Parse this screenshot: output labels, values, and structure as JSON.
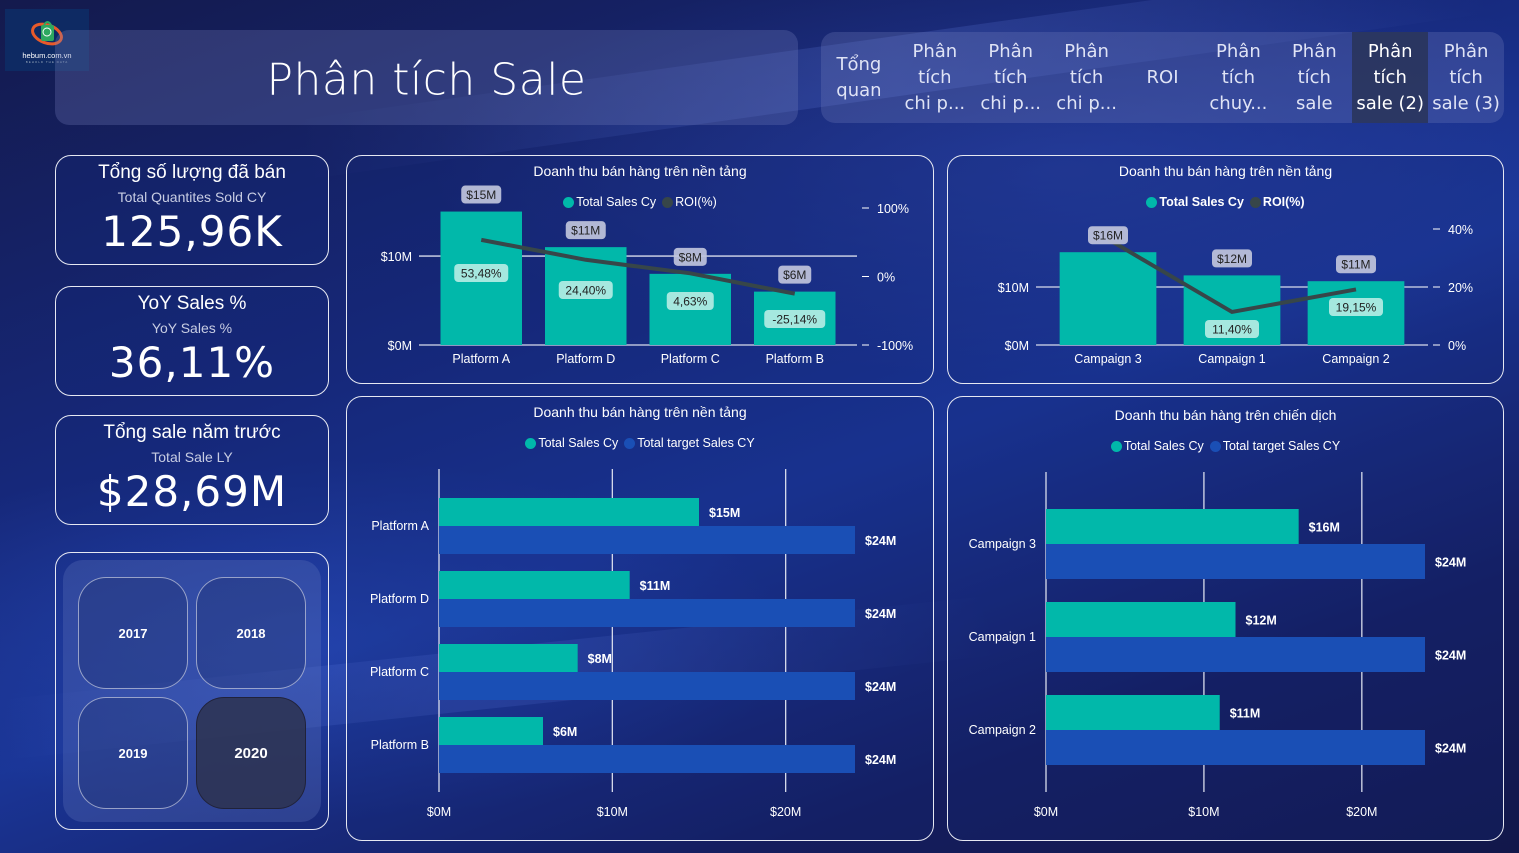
{
  "app": {
    "logo_text": "hebum.com.vn",
    "logo_sub": "BEHOLD THE DATA",
    "page_title": "Phân tích Sale"
  },
  "nav": {
    "tabs": [
      {
        "label": "Tổng\nquan",
        "active": false
      },
      {
        "label": "Phân\ntích\nchi p...",
        "active": false
      },
      {
        "label": "Phân\ntích\nchi p...",
        "active": false
      },
      {
        "label": "Phân\ntích\nchi p...",
        "active": false
      },
      {
        "label": "ROI",
        "active": false
      },
      {
        "label": "Phân\ntích\nchuy...",
        "active": false
      },
      {
        "label": "Phân\ntích\nsale",
        "active": false
      },
      {
        "label": "Phân\ntích\nsale (2)",
        "active": true
      },
      {
        "label": "Phân\ntích\nsale (3)",
        "active": false
      }
    ]
  },
  "kpis": [
    {
      "title": "Tổng số lượng đã bán",
      "subtitle": "Total Quantites Sold CY",
      "value": "125,96K"
    },
    {
      "title": "YoY Sales %",
      "subtitle": "YoY Sales %",
      "value": "36,11%"
    },
    {
      "title": "Tổng sale năm trước",
      "subtitle": "Total Sale LY",
      "value": "$28,69M"
    }
  ],
  "year_slicer": {
    "options": [
      "2017",
      "2018",
      "2019",
      "2020"
    ],
    "selected": "2020"
  },
  "colors": {
    "sales": "#01b8aa",
    "target": "#1a4fb5",
    "roi": "#374649",
    "label_bg": "#c0c4dc",
    "roi_label_bg": "#b3ece4"
  },
  "chart_data": [
    {
      "type": "bar",
      "title": "Doanh thu bán hàng trên nền tảng",
      "legend": [
        "Total Sales Cy",
        "ROI(%)"
      ],
      "categories": [
        "Platform A",
        "Platform D",
        "Platform C",
        "Platform B"
      ],
      "series": [
        {
          "name": "Total Sales Cy",
          "values": [
            15,
            11,
            8,
            6
          ],
          "labels": [
            "$15M",
            "$11M",
            "$8M",
            "$6M"
          ],
          "axis": "left"
        },
        {
          "name": "ROI(%)",
          "type": "line",
          "values": [
            53.48,
            24.4,
            4.63,
            -25.14
          ],
          "labels": [
            "53,48%",
            "24,40%",
            "4,63%",
            "-25,14%"
          ],
          "axis": "right"
        }
      ],
      "y_left": {
        "ticks": [
          "$0M",
          "$10M"
        ],
        "range": [
          0,
          15
        ]
      },
      "y_right": {
        "ticks": [
          "-100%",
          "0%",
          "100%"
        ],
        "range": [
          -100,
          100
        ]
      },
      "grid": true,
      "legend_position": "top-center"
    },
    {
      "type": "bar",
      "title": "Doanh thu bán hàng trên nền tảng",
      "legend": [
        "Total Sales Cy",
        "ROI(%)"
      ],
      "categories": [
        "Campaign 3",
        "Campaign 1",
        "Campaign 2"
      ],
      "series": [
        {
          "name": "Total Sales Cy",
          "values": [
            16,
            12,
            11
          ],
          "labels": [
            "$16M",
            "$12M",
            "$11M"
          ],
          "axis": "left"
        },
        {
          "name": "ROI(%)",
          "type": "line",
          "values": [
            36.5,
            11.4,
            19.15
          ],
          "labels": [
            "",
            "11,40%",
            "19,15%"
          ],
          "axis": "right"
        }
      ],
      "y_left": {
        "ticks": [
          "$0M",
          "$10M"
        ],
        "range": [
          0,
          20
        ]
      },
      "y_right": {
        "ticks": [
          "0%",
          "20%",
          "40%"
        ],
        "range": [
          0,
          40
        ]
      },
      "grid": true,
      "legend_position": "top-center"
    },
    {
      "type": "bar",
      "orientation": "horizontal",
      "title": "Doanh thu bán hàng trên nền tảng",
      "legend": [
        "Total Sales Cy",
        "Total target Sales CY"
      ],
      "categories": [
        "Platform A",
        "Platform D",
        "Platform C",
        "Platform B"
      ],
      "series": [
        {
          "name": "Total Sales Cy",
          "values": [
            15,
            11,
            8,
            6
          ],
          "labels": [
            "$15M",
            "$11M",
            "$8M",
            "$6M"
          ]
        },
        {
          "name": "Total target Sales CY",
          "values": [
            24,
            24,
            24,
            24
          ],
          "labels": [
            "$24M",
            "$24M",
            "$24M",
            "$24M"
          ]
        }
      ],
      "x_axis": {
        "ticks": [
          "$0M",
          "$10M",
          "$20M"
        ],
        "range": [
          0,
          24
        ]
      },
      "grid": true,
      "legend_position": "top-center"
    },
    {
      "type": "bar",
      "orientation": "horizontal",
      "title": "Doanh thu bán hàng trên chiến dịch",
      "legend": [
        "Total Sales Cy",
        "Total target Sales CY"
      ],
      "categories": [
        "Campaign 3",
        "Campaign 1",
        "Campaign 2"
      ],
      "series": [
        {
          "name": "Total Sales Cy",
          "values": [
            16,
            12,
            11
          ],
          "labels": [
            "$16M",
            "$12M",
            "$11M"
          ]
        },
        {
          "name": "Total target Sales CY",
          "values": [
            24,
            24,
            24
          ],
          "labels": [
            "$24M",
            "$24M",
            "$24M"
          ]
        }
      ],
      "x_axis": {
        "ticks": [
          "$0M",
          "$10M",
          "$20M"
        ],
        "range": [
          0,
          24
        ]
      },
      "grid": true,
      "legend_position": "top-center"
    }
  ]
}
